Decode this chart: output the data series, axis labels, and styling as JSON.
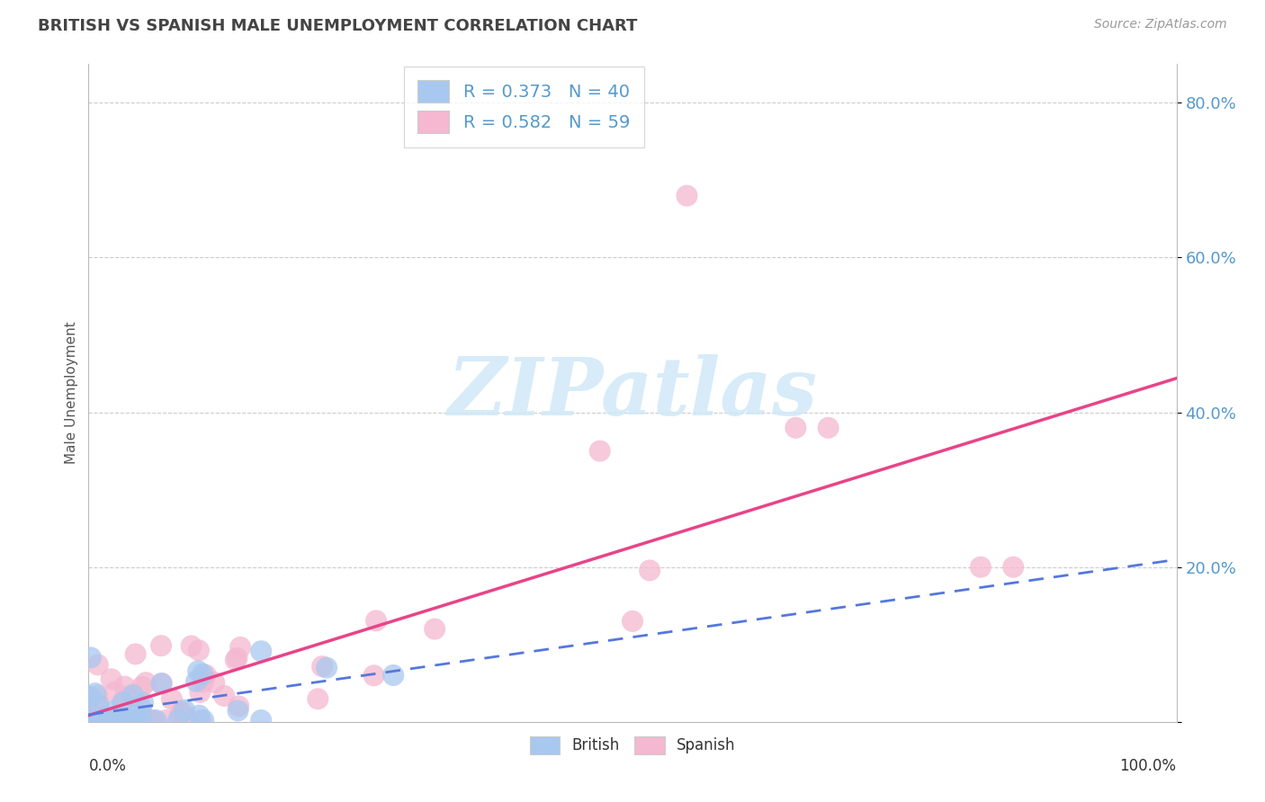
{
  "title": "BRITISH VS SPANISH MALE UNEMPLOYMENT CORRELATION CHART",
  "source": "Source: ZipAtlas.com",
  "ylabel": "Male Unemployment",
  "xlim": [
    0.0,
    1.0
  ],
  "ylim": [
    0.0,
    0.85
  ],
  "yticks": [
    0.0,
    0.2,
    0.4,
    0.6,
    0.8
  ],
  "ytick_labels": [
    "",
    "20.0%",
    "40.0%",
    "60.0%",
    "80.0%"
  ],
  "background_color": "#ffffff",
  "grid_color": "#cccccc",
  "british_color": "#a8c8f0",
  "spanish_color": "#f4b8d0",
  "british_line_color": "#5577dd",
  "spanish_line_color": "#e84488",
  "british_R": 0.373,
  "british_N": 40,
  "spanish_R": 0.582,
  "spanish_N": 59,
  "watermark_text": "ZIPatlas",
  "watermark_color": "#d0e8f8",
  "title_color": "#444444",
  "source_color": "#999999",
  "tick_color": "#5599cc",
  "ylabel_color": "#555555"
}
